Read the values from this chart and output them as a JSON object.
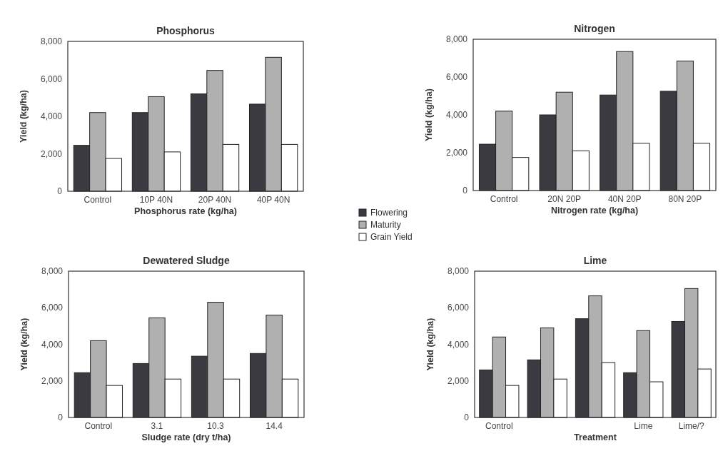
{
  "chart_data": [
    {
      "type": "bar",
      "title": "Phosphorus",
      "xlabel": "Phosphorus rate (kg/ha)",
      "ylabel": "Yield (kg/ha)",
      "categories": [
        "Control",
        "10P 40N",
        "20P 40N",
        "40P 40N"
      ],
      "ylim": [
        0,
        8000
      ],
      "yticks": [
        {
          "value": 0,
          "label": "0"
        },
        {
          "value": 2000,
          "label": "2,000"
        },
        {
          "value": 4000,
          "label": "4,000"
        },
        {
          "value": 6000,
          "label": "6,000"
        },
        {
          "value": 8000,
          "label": "8,000"
        }
      ],
      "legend": "right",
      "series": [
        {
          "name": "Flowering",
          "color": "#3a3a40",
          "values": [
            2450,
            4200,
            5200,
            4650
          ]
        },
        {
          "name": "Maturity",
          "color": "#b0b0b0",
          "values": [
            4200,
            5050,
            6450,
            7150
          ]
        },
        {
          "name": "Grain Yield",
          "color": "#ffffff",
          "values": [
            1750,
            2100,
            2500,
            2500
          ]
        }
      ]
    },
    {
      "type": "bar",
      "title": "Nitrogen",
      "xlabel": "Nitrogen rate (kg/ha)",
      "ylabel": "Yield (kg/ha)",
      "categories": [
        "Control",
        "20N 20P",
        "40N 20P",
        "80N 20P"
      ],
      "ylim": [
        0,
        8000
      ],
      "yticks": [
        {
          "value": 0,
          "label": "0"
        },
        {
          "value": 2000,
          "label": "2,000"
        },
        {
          "value": 4000,
          "label": "4,000"
        },
        {
          "value": 6000,
          "label": "6,000"
        },
        {
          "value": 8000,
          "label": "8,000"
        }
      ],
      "series": [
        {
          "color": "#3a3a40",
          "values": [
            2450,
            4000,
            5050,
            5250
          ]
        },
        {
          "color": "#b0b0b0",
          "values": [
            4200,
            5200,
            7350,
            6850
          ]
        },
        {
          "color": "#ffffff",
          "values": [
            1750,
            2100,
            2500,
            2500
          ]
        }
      ]
    },
    {
      "type": "bar",
      "title": "Dewatered Sludge",
      "xlabel": "Sludge rate (dry t/ha)",
      "ylabel": "Yield (kg/ha)",
      "categories": [
        "Control",
        "3.1",
        "10.3",
        "14.4"
      ],
      "ylim": [
        0,
        8000
      ],
      "yticks": [
        {
          "value": 0,
          "label": "0"
        },
        {
          "value": 2000,
          "label": "2,000"
        },
        {
          "value": 4000,
          "label": "4,000"
        },
        {
          "value": 6000,
          "label": "6,000"
        },
        {
          "value": 8000,
          "label": "8,000"
        }
      ],
      "series": [
        {
          "color": "#3a3a40",
          "values": [
            2450,
            2950,
            3350,
            3500
          ]
        },
        {
          "color": "#b0b0b0",
          "values": [
            4200,
            5450,
            6300,
            5600
          ]
        },
        {
          "color": "#ffffff",
          "values": [
            1750,
            2100,
            2100,
            2100
          ]
        }
      ]
    },
    {
      "type": "bar",
      "title": "Lime",
      "xlabel": "Treatment",
      "ylabel": "Yield (kg/ha)",
      "categories": [
        "Control",
        null,
        null,
        "Lime",
        "Lime/?"
      ],
      "ylim": [
        0,
        8000
      ],
      "yticks": [
        {
          "value": 0,
          "label": "0"
        },
        {
          "value": 2000,
          "label": "2,000"
        },
        {
          "value": 4000,
          "label": "4,000"
        },
        {
          "value": 6000,
          "label": "6,000"
        },
        {
          "value": 8000,
          "label": "8,000"
        }
      ],
      "series": [
        {
          "color": "#3a3a40",
          "values": [
            2600,
            3150,
            5400,
            2450,
            5250
          ]
        },
        {
          "color": "#b0b0b0",
          "values": [
            4400,
            4900,
            6650,
            4750,
            7050
          ]
        },
        {
          "color": "#ffffff",
          "values": [
            1750,
            2100,
            3000,
            1950,
            2650
          ]
        }
      ]
    }
  ]
}
